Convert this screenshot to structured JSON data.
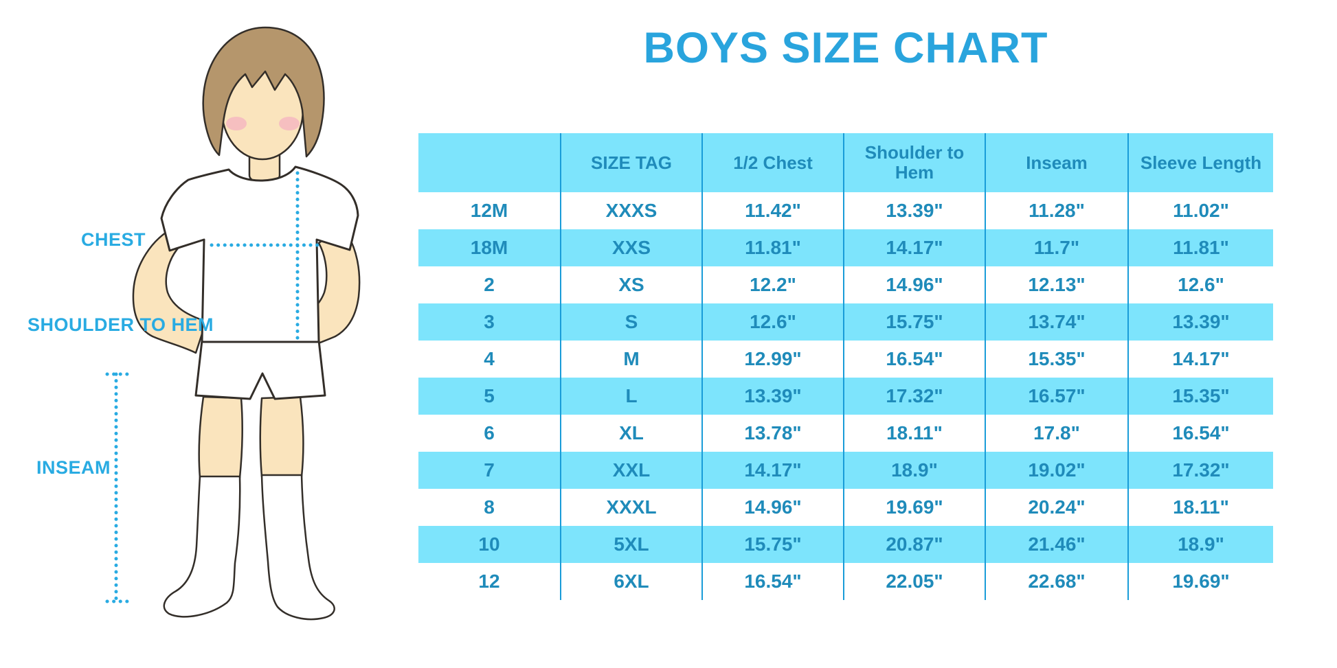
{
  "title": "BOYS SIZE CHART",
  "figure": {
    "labels": {
      "chest": "CHEST",
      "shoulder_to_hem": "SHOULDER TO HEM",
      "inseam": "INSEAM"
    }
  },
  "colors": {
    "title_blue": "#29A4DD",
    "label_blue": "#29ABE2",
    "table_fill_cyan": "#7DE4FC",
    "table_text_blue": "#1F8BBA",
    "table_line_blue": "#199CD8",
    "dotted_line_blue": "#29ABE2"
  },
  "chart_data": {
    "type": "table",
    "title": "BOYS SIZE CHART",
    "columns": [
      "",
      "SIZE TAG",
      "1/2 Chest",
      "Shoulder to Hem",
      "Inseam",
      "Sleeve Length"
    ],
    "rows": [
      [
        "12M",
        "XXXS",
        "11.42\"",
        "13.39\"",
        "11.28\"",
        "11.02\""
      ],
      [
        "18M",
        "XXS",
        "11.81\"",
        "14.17\"",
        "11.7\"",
        "11.81\""
      ],
      [
        "2",
        "XS",
        "12.2\"",
        "14.96\"",
        "12.13\"",
        "12.6\""
      ],
      [
        "3",
        "S",
        "12.6\"",
        "15.75\"",
        "13.74\"",
        "13.39\""
      ],
      [
        "4",
        "M",
        "12.99\"",
        "16.54\"",
        "15.35\"",
        "14.17\""
      ],
      [
        "5",
        "L",
        "13.39\"",
        "17.32\"",
        "16.57\"",
        "15.35\""
      ],
      [
        "6",
        "XL",
        "13.78\"",
        "18.11\"",
        "17.8\"",
        "16.54\""
      ],
      [
        "7",
        "XXL",
        "14.17\"",
        "18.9\"",
        "19.02\"",
        "17.32\""
      ],
      [
        "8",
        "XXXL",
        "14.96\"",
        "19.69\"",
        "20.24\"",
        "18.11\""
      ],
      [
        "10",
        "5XL",
        "15.75\"",
        "20.87\"",
        "21.46\"",
        "18.9\""
      ],
      [
        "12",
        "6XL",
        "16.54\"",
        "22.05\"",
        "22.68\"",
        "19.69\""
      ]
    ],
    "layout": {
      "header_background": "cyan",
      "row_striping": "alternating white / cyan starting with white",
      "gridlines": "vertical column separators only, no outer border"
    }
  }
}
